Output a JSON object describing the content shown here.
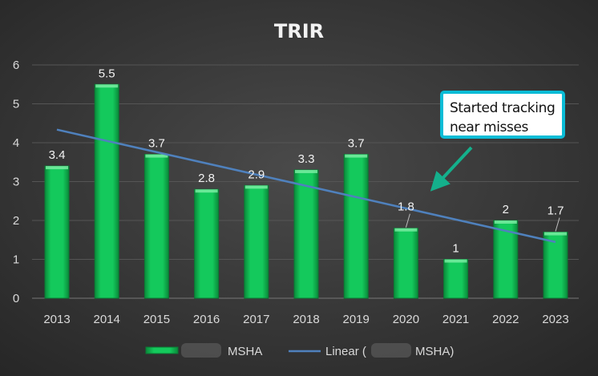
{
  "chart_data": {
    "type": "bar",
    "title": "TRIR",
    "categories": [
      "2013",
      "2014",
      "2015",
      "2016",
      "2017",
      "2018",
      "2019",
      "2020",
      "2021",
      "2022",
      "2023"
    ],
    "series": [
      {
        "name": "MSHA",
        "values": [
          3.4,
          5.5,
          3.7,
          2.8,
          2.9,
          3.3,
          3.7,
          1.8,
          1,
          2,
          1.7
        ],
        "color": "#12c257"
      }
    ],
    "trendline": {
      "type": "linear",
      "name": "Linear (MSHA)",
      "color": "#4f81bd"
    },
    "data_labels": [
      "3.4",
      "5.5",
      "3.7",
      "2.8",
      "2.9",
      "3.3",
      "3.7",
      "1.8",
      "1",
      "2",
      "1.7"
    ],
    "ylim": [
      0,
      6
    ],
    "yticks": [
      "0",
      "1",
      "2",
      "3",
      "4",
      "5",
      "6"
    ],
    "grid": true,
    "legend": "bottom",
    "legend_labels": {
      "series": "MSHA",
      "trend_prefix": "Linear (",
      "trend_suffix": "MSHA)"
    },
    "annotation": {
      "text_line1": "Started tracking",
      "text_line2": "near misses",
      "border_color": "#0bbcd6",
      "arrow_color": "#14b08c"
    },
    "background_color": "#333333"
  }
}
